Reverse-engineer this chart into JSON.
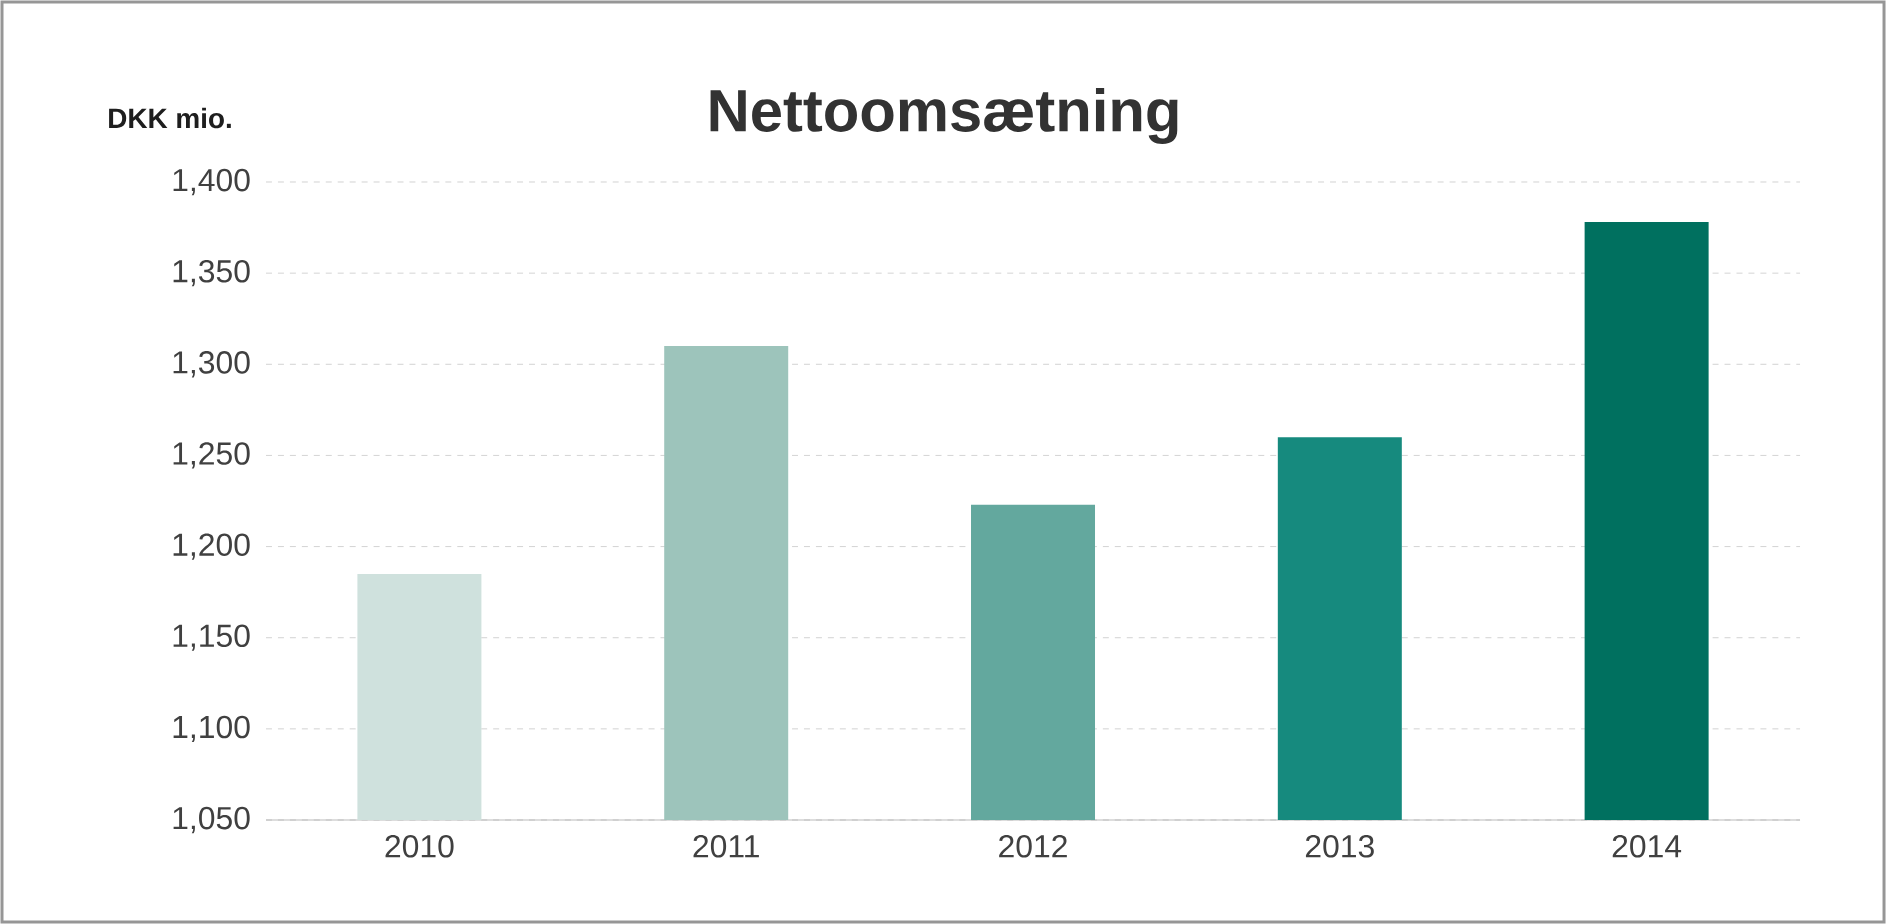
{
  "chart_data": {
    "type": "bar",
    "title": "Nettoomsætning",
    "ylabel": "DKK mio.",
    "categories": [
      "2010",
      "2011",
      "2012",
      "2013",
      "2014"
    ],
    "values": [
      1185,
      1310,
      1223,
      1260,
      1378
    ],
    "colors": [
      "#cfe1dd",
      "#9dc4bb",
      "#63a89e",
      "#168a7e",
      "#00705f"
    ],
    "ylim": [
      1050,
      1400
    ],
    "yticks": [
      {
        "value": 1050,
        "label": "1,050"
      },
      {
        "value": 1100,
        "label": "1,100"
      },
      {
        "value": 1150,
        "label": "1,150"
      },
      {
        "value": 1200,
        "label": "1,200"
      },
      {
        "value": 1250,
        "label": "1,250"
      },
      {
        "value": 1300,
        "label": "1,300"
      },
      {
        "value": 1350,
        "label": "1,350"
      },
      {
        "value": 1400,
        "label": "1,400"
      }
    ],
    "grid": "y"
  }
}
